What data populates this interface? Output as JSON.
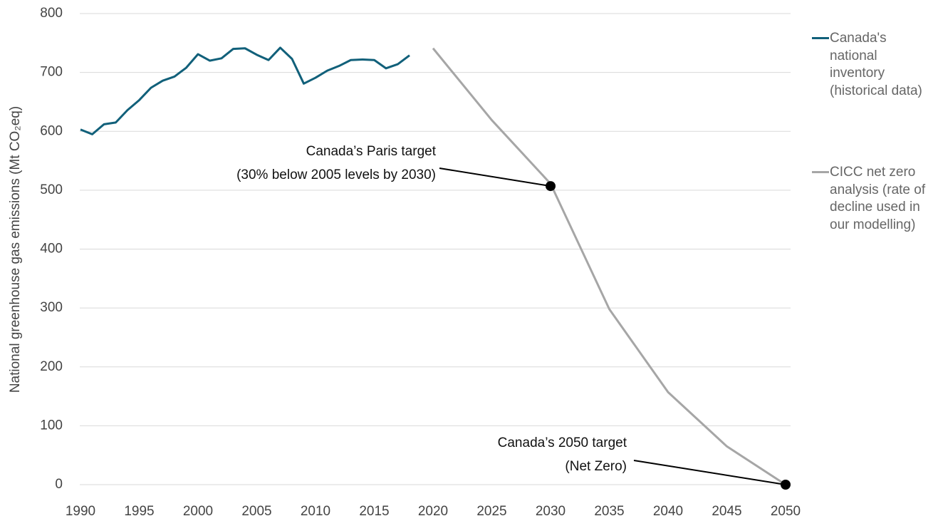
{
  "chart_data": {
    "type": "line",
    "y_label": "National greenhouse gas emissions (Mt CO₂eq)",
    "xlim": [
      1990,
      2050
    ],
    "xticks": [
      1990,
      1995,
      2000,
      2005,
      2010,
      2015,
      2020,
      2025,
      2030,
      2035,
      2040,
      2045,
      2050
    ],
    "ylim": [
      0,
      800
    ],
    "yticks": [
      0,
      100,
      200,
      300,
      400,
      500,
      600,
      700,
      800
    ],
    "grid": true,
    "legend": "right",
    "series": [
      {
        "name": "Canada's national inventory (historical data)",
        "color": "#11607a",
        "x": [
          1990,
          1991,
          1992,
          1993,
          1994,
          1995,
          1996,
          1997,
          1998,
          1999,
          2000,
          2001,
          2002,
          2003,
          2004,
          2005,
          2006,
          2007,
          2008,
          2009,
          2010,
          2011,
          2012,
          2013,
          2014,
          2015,
          2016,
          2017,
          2018
        ],
        "values": [
          603,
          595,
          612,
          615,
          636,
          653,
          674,
          686,
          693,
          708,
          731,
          720,
          724,
          740,
          741,
          730,
          721,
          742,
          723,
          681,
          691,
          703,
          711,
          721,
          722,
          721,
          707,
          714,
          729
        ]
      },
      {
        "name": "CICC net zero analysis (rate of decline used in our modelling)",
        "color": "#a6a6a6",
        "x": [
          2020,
          2025,
          2030,
          2035,
          2040,
          2045,
          2050
        ],
        "values": [
          741,
          619,
          511,
          298,
          157,
          65,
          0
        ]
      }
    ],
    "annotations": [
      {
        "text": [
          "Canada’s Paris target",
          "(30% below 2005 levels by 2030)"
        ],
        "x": 2030,
        "y": 507
      },
      {
        "text": [
          "Canada’s 2050 target",
          "(Net Zero)"
        ],
        "x": 2050,
        "y": 0
      }
    ]
  }
}
